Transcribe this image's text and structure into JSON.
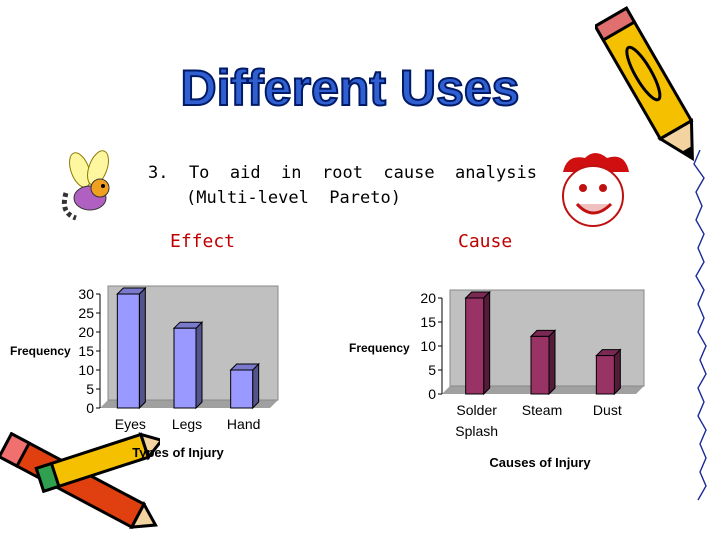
{
  "slide": {
    "title": "Different Uses",
    "point_line1": "3.  To  aid  in  root  cause  analysis",
    "point_line2": "(Multi-level  Pareto)",
    "effect_label": "Effect",
    "cause_label": "Cause"
  },
  "colors": {
    "title_blue": "#2f5fd0",
    "effect_bars": "#9999ff",
    "cause_bars": "#993366",
    "header_red": "#c00000",
    "chart_wall": "#c0c0c0"
  },
  "chart_data": [
    {
      "type": "bar",
      "categories": [
        "Eyes",
        "Legs",
        "Hand"
      ],
      "values": [
        30,
        21,
        10
      ],
      "title": "",
      "xlabel": "Types  of  Injury",
      "ylabel": "Frequency",
      "ylim": [
        0,
        30
      ],
      "yticks": [
        0,
        5,
        10,
        15,
        20,
        25,
        30
      ],
      "grid": false,
      "legend": "none"
    },
    {
      "type": "bar",
      "categories": [
        "Solder Splash",
        "Steam",
        "Dust"
      ],
      "category_lines": [
        [
          "Solder",
          "Splash"
        ],
        [
          "Steam"
        ],
        [
          "Dust"
        ]
      ],
      "values": [
        20,
        12,
        8
      ],
      "title": "",
      "xlabel": "Causes  of  Injury",
      "ylabel": "Frequency",
      "ylim": [
        0,
        20
      ],
      "yticks": [
        0,
        5,
        10,
        15,
        20
      ],
      "grid": false,
      "legend": "none"
    }
  ]
}
